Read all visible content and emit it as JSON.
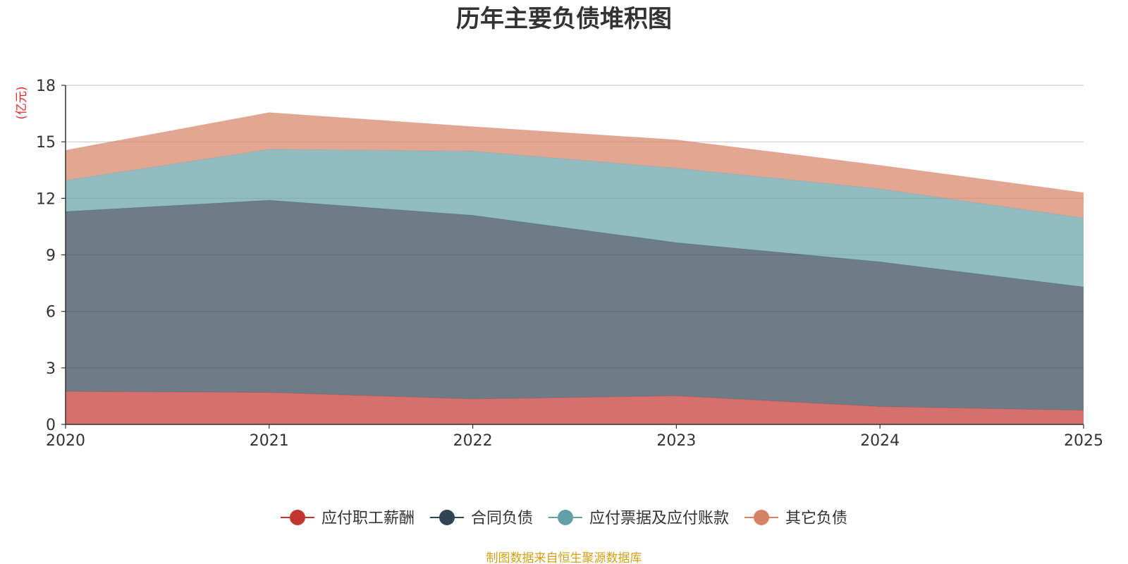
{
  "chart_data": {
    "type": "area",
    "stacked": true,
    "title": "历年主要负债堆积图",
    "ylabel": "(亿元)",
    "xlabel": "",
    "categories": [
      "2020",
      "2021",
      "2022",
      "2023",
      "2024",
      "2025"
    ],
    "ylim": [
      0,
      18
    ],
    "yticks": [
      0,
      3,
      6,
      9,
      12,
      15,
      18
    ],
    "grid": true,
    "legend_position": "bottom-center",
    "series": [
      {
        "name": "应付职工薪酬",
        "color": "#c23531",
        "values": [
          1.75,
          1.7,
          1.35,
          1.52,
          0.95,
          0.75
        ]
      },
      {
        "name": "合同负债",
        "color": "#2f4554",
        "values": [
          9.55,
          10.2,
          9.75,
          8.13,
          7.68,
          6.55
        ]
      },
      {
        "name": "应付票据及应付账款",
        "color": "#61a0a8",
        "values": [
          1.65,
          2.7,
          3.4,
          3.95,
          3.87,
          3.65
        ]
      },
      {
        "name": "其它负债",
        "color": "#d48265",
        "values": [
          1.6,
          1.95,
          1.3,
          1.5,
          1.25,
          1.35
        ]
      }
    ],
    "source": "制图数据来自恒生聚源数据库"
  }
}
